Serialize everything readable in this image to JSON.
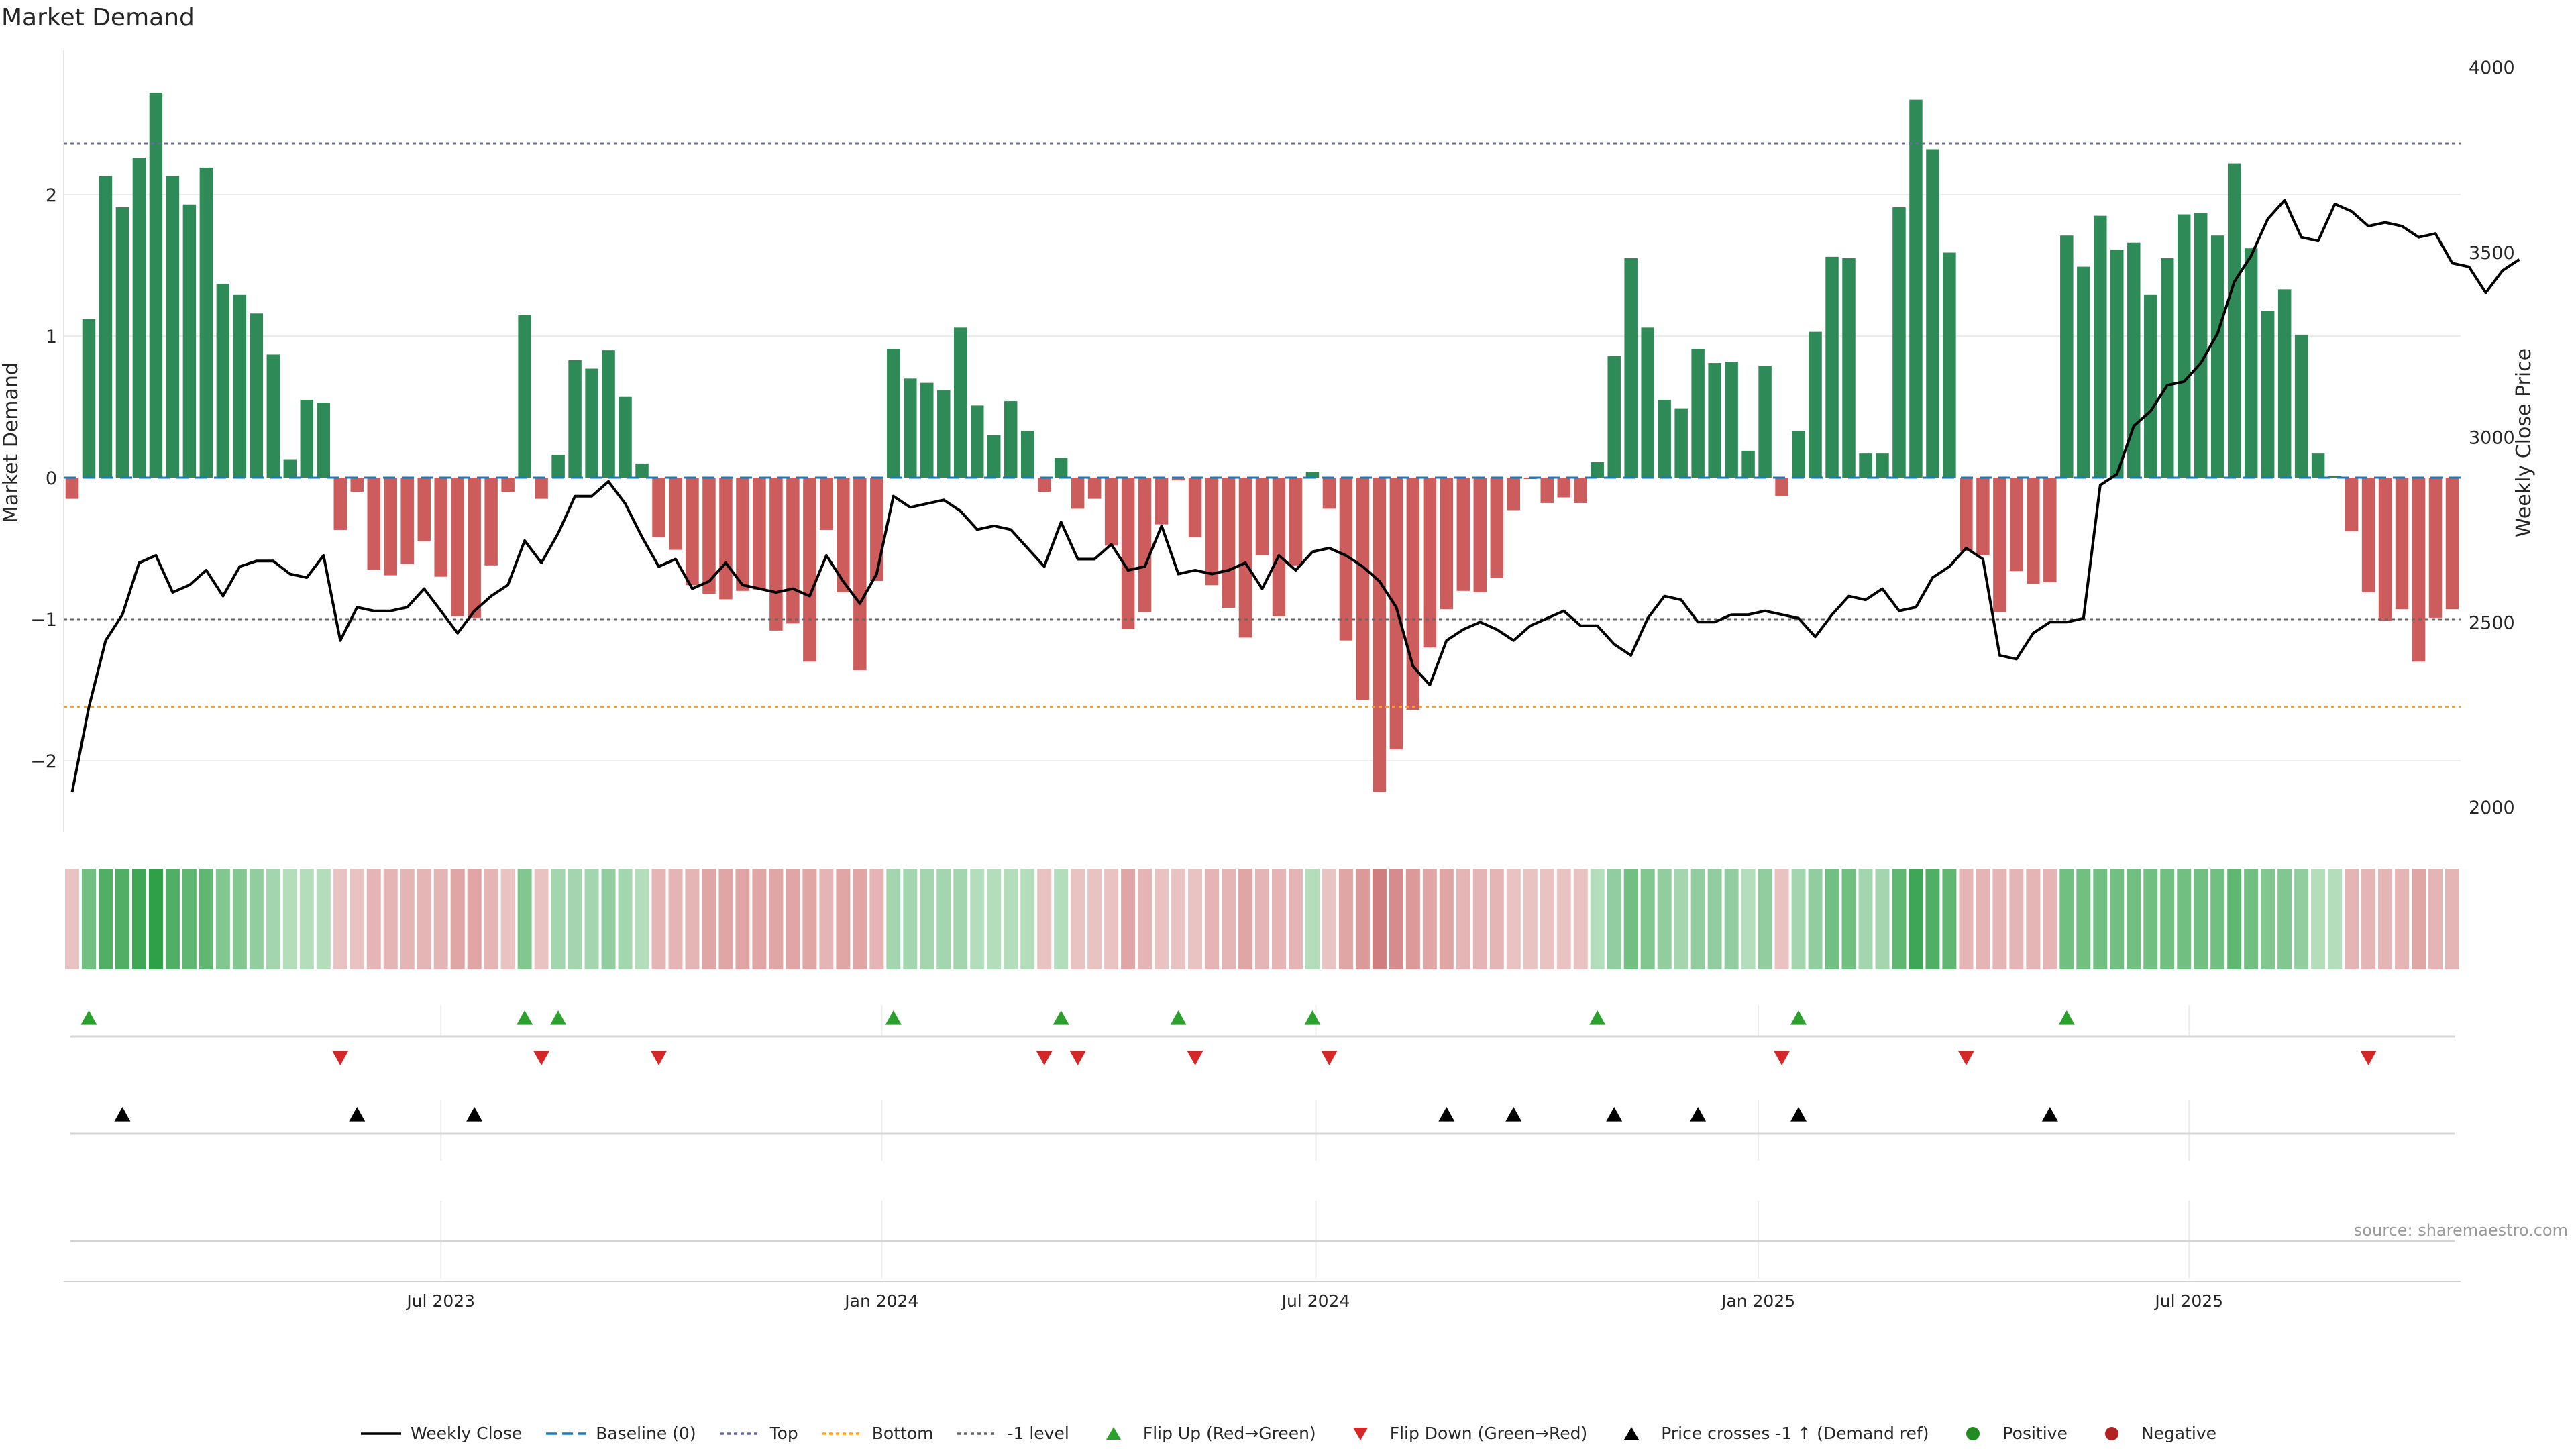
{
  "title": "Market Demand",
  "source": "source: sharemaestro.com",
  "colors": {
    "positive": "#2e8b57",
    "negative": "#cd5c5c",
    "close": "#000000",
    "baseline": "#1f77b4",
    "top": "#6a6aa0",
    "bottom": "#ff9f1c",
    "minus1": "#666666",
    "flip_up": "#2ca02c",
    "flip_down": "#d62728",
    "cross": "#000000",
    "pos_dot": "#228b22",
    "neg_dot": "#b22222"
  },
  "chart_data": {
    "type": "bar+line",
    "title": "Market Demand",
    "ylabel": "Market Demand",
    "y2label": "Weekly Close Price",
    "ylim": [
      -2.5,
      3.0
    ],
    "y2lim": [
      1950,
      4000
    ],
    "yticks": [
      "2",
      "1",
      "0",
      "−1",
      "−2"
    ],
    "y2ticks": [
      "4000",
      "3500",
      "3000",
      "2500",
      "2000"
    ],
    "xtick_labels": [
      "Jul 2023",
      "Jan 2024",
      "Jul 2024",
      "Jan 2025",
      "Jul 2025"
    ],
    "xtick_weeks": [
      22,
      48.3,
      74.2,
      100.6,
      126.3
    ],
    "levels": {
      "top": 2.36,
      "bottom": -1.62,
      "minus1": -1.0,
      "baseline": 0
    },
    "demand": [
      -0.15,
      1.12,
      2.13,
      1.91,
      2.26,
      2.72,
      2.13,
      1.93,
      2.19,
      1.37,
      1.29,
      1.16,
      0.87,
      0.13,
      0.55,
      0.53,
      -0.37,
      -0.1,
      -0.65,
      -0.69,
      -0.61,
      -0.45,
      -0.7,
      -0.98,
      -0.99,
      -0.62,
      -0.1,
      1.15,
      -0.15,
      0.16,
      0.83,
      0.77,
      0.9,
      0.57,
      0.1,
      -0.42,
      -0.51,
      -0.76,
      -0.82,
      -0.86,
      -0.8,
      -0.79,
      -1.08,
      -1.03,
      -1.3,
      -0.37,
      -0.81,
      -1.36,
      -0.73,
      0.91,
      0.7,
      0.67,
      0.62,
      1.06,
      0.51,
      0.3,
      0.54,
      0.33,
      -0.1,
      0.14,
      -0.22,
      -0.15,
      -0.48,
      -1.07,
      -0.95,
      -0.33,
      -0.02,
      -0.42,
      -0.76,
      -0.92,
      -1.13,
      -0.55,
      -0.98,
      -0.62,
      0.04,
      -0.22,
      -1.15,
      -1.57,
      -2.22,
      -1.92,
      -1.64,
      -1.2,
      -0.93,
      -0.8,
      -0.81,
      -0.71,
      -0.23,
      -0.01,
      -0.18,
      -0.14,
      -0.18,
      0.11,
      0.86,
      1.55,
      1.06,
      0.55,
      0.49,
      0.91,
      0.81,
      0.82,
      0.19,
      0.79,
      -0.13,
      0.33,
      1.03,
      1.56,
      1.55,
      0.17,
      0.17,
      1.91,
      2.67,
      2.32,
      1.59,
      -0.52,
      -0.55,
      -0.95,
      -0.66,
      -0.75,
      -0.74,
      1.71,
      1.49,
      1.85,
      1.61,
      1.66,
      1.29,
      1.55,
      1.86,
      1.87,
      1.71,
      2.22,
      1.62,
      1.18,
      1.33,
      1.01,
      0.17,
      0.01,
      -0.38,
      -0.81,
      -1.01,
      -0.93,
      -1.3,
      -0.99,
      -0.93
    ],
    "close": [
      2040,
      2270,
      2450,
      2520,
      2660,
      2680,
      2580,
      2600,
      2640,
      2570,
      2650,
      2665,
      2665,
      2630,
      2620,
      2680,
      2450,
      2540,
      2530,
      2530,
      2540,
      2590,
      2530,
      2470,
      2530,
      2570,
      2600,
      2720,
      2660,
      2740,
      2840,
      2840,
      2880,
      2820,
      2730,
      2650,
      2670,
      2590,
      2610,
      2660,
      2600,
      2590,
      2580,
      2590,
      2570,
      2680,
      2610,
      2550,
      2630,
      2840,
      2810,
      2820,
      2830,
      2800,
      2750,
      2760,
      2750,
      2700,
      2650,
      2770,
      2670,
      2670,
      2710,
      2640,
      2650,
      2760,
      2630,
      2640,
      2630,
      2640,
      2660,
      2590,
      2680,
      2640,
      2690,
      2700,
      2680,
      2650,
      2610,
      2540,
      2380,
      2330,
      2450,
      2480,
      2500,
      2480,
      2450,
      2490,
      2510,
      2530,
      2490,
      2490,
      2440,
      2410,
      2510,
      2570,
      2560,
      2500,
      2500,
      2520,
      2520,
      2530,
      2520,
      2510,
      2460,
      2520,
      2570,
      2560,
      2590,
      2530,
      2540,
      2620,
      2650,
      2700,
      2670,
      2410,
      2400,
      2470,
      2500,
      2500,
      2510,
      2870,
      2900,
      3030,
      3070,
      3140,
      3150,
      3200,
      3280,
      3420,
      3490,
      3590,
      3640,
      3540,
      3530,
      3630,
      3610,
      3570,
      3580,
      3570,
      3540,
      3550,
      3470,
      3460,
      3390,
      3450,
      3480
    ],
    "pressure": [
      -0.2,
      0.6,
      0.8,
      0.8,
      0.9,
      1.0,
      0.8,
      0.7,
      0.7,
      0.5,
      0.5,
      0.4,
      0.3,
      0.2,
      0.2,
      0.2,
      -0.2,
      -0.2,
      -0.3,
      -0.3,
      -0.3,
      -0.3,
      -0.3,
      -0.4,
      -0.4,
      -0.3,
      -0.2,
      0.5,
      -0.2,
      0.3,
      0.3,
      0.3,
      0.4,
      0.3,
      0.2,
      -0.3,
      -0.3,
      -0.3,
      -0.4,
      -0.4,
      -0.4,
      -0.4,
      -0.4,
      -0.4,
      -0.4,
      -0.3,
      -0.4,
      -0.4,
      -0.3,
      0.3,
      0.3,
      0.3,
      0.3,
      0.3,
      0.2,
      0.2,
      0.2,
      0.2,
      -0.2,
      0.2,
      -0.2,
      -0.2,
      -0.2,
      -0.4,
      -0.3,
      -0.2,
      -0.2,
      -0.2,
      -0.3,
      -0.3,
      -0.4,
      -0.3,
      -0.3,
      -0.3,
      0.2,
      -0.2,
      -0.4,
      -0.5,
      -0.7,
      -0.6,
      -0.5,
      -0.4,
      -0.4,
      -0.3,
      -0.3,
      -0.3,
      -0.2,
      -0.2,
      -0.2,
      -0.2,
      -0.2,
      0.2,
      0.4,
      0.6,
      0.5,
      0.4,
      0.3,
      0.4,
      0.4,
      0.4,
      0.2,
      0.4,
      -0.2,
      0.3,
      0.4,
      0.6,
      0.6,
      0.3,
      0.3,
      0.7,
      0.9,
      0.8,
      0.7,
      -0.3,
      -0.3,
      -0.3,
      -0.3,
      -0.3,
      -0.3,
      0.6,
      0.6,
      0.6,
      0.6,
      0.6,
      0.6,
      0.6,
      0.6,
      0.6,
      0.6,
      0.7,
      0.6,
      0.5,
      0.5,
      0.4,
      0.2,
      0.2,
      -0.3,
      -0.3,
      -0.3,
      -0.3,
      -0.4,
      -0.3,
      -0.3
    ],
    "flip_up_weeks": [
      1,
      27,
      29,
      49,
      59,
      66,
      74,
      91,
      103,
      119
    ],
    "flip_down_weeks": [
      16,
      28,
      35,
      58,
      60,
      67,
      75,
      102,
      113,
      137
    ],
    "cross_weeks": [
      3,
      17,
      24,
      82,
      86,
      92,
      97,
      103,
      118
    ]
  },
  "legend": [
    {
      "label": "Weekly Close",
      "icon": "solid-line"
    },
    {
      "label": "Baseline (0)",
      "icon": "dashed-line"
    },
    {
      "label": "Top",
      "icon": "dotted-line"
    },
    {
      "label": "Bottom",
      "icon": "dotted-line"
    },
    {
      "label": "-1 level",
      "icon": "dotted-line"
    },
    {
      "label": "Flip Up (Red→Green)",
      "icon": "triangle-up"
    },
    {
      "label": "Flip Down (Green→Red)",
      "icon": "triangle-down"
    },
    {
      "label": "Price crosses -1 ↑ (Demand ref)",
      "icon": "triangle-up"
    },
    {
      "label": "Positive",
      "icon": "circle"
    },
    {
      "label": "Negative",
      "icon": "circle"
    }
  ]
}
